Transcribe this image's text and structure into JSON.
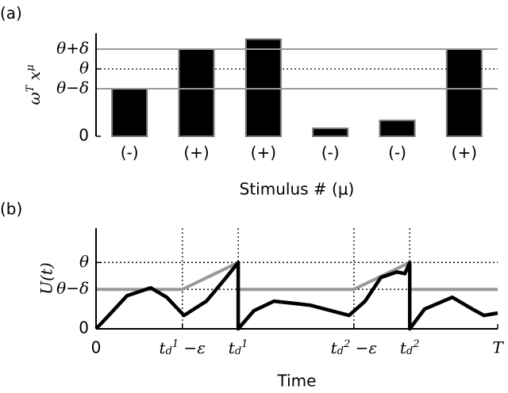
{
  "chart_data": [
    {
      "type": "bar",
      "panel_label": "(a)",
      "xlabel": "Stimulus # (μ)",
      "ylabel": "ω^T x^μ",
      "categories": [
        "(-)",
        "(+)",
        "(+)",
        "(-)",
        "(-)",
        "(+)"
      ],
      "values": [
        2.4,
        4.4,
        4.9,
        0.4,
        0.8,
        4.4
      ],
      "color": "#000000",
      "ylim": [
        0,
        5.2
      ],
      "yticks": [
        0,
        {
          "value": 2.4,
          "label": "θ−δ"
        },
        {
          "value": 3.4,
          "label": "θ"
        },
        {
          "value": 4.4,
          "label": "θ+δ"
        }
      ],
      "grid": true
    },
    {
      "type": "line",
      "panel_label": "(b)",
      "xlabel": "Time",
      "ylabel": "U(t)",
      "xlim": [
        0,
        10
      ],
      "ylim": [
        0,
        5.1
      ],
      "xticks": [
        0,
        {
          "value": 2.15,
          "label": "t_d^1 −ε"
        },
        {
          "value": 3.54,
          "label": "t_d^1"
        },
        {
          "value": 6.42,
          "label": "t_d^2 −ε"
        },
        {
          "value": 7.81,
          "label": "t_d^2"
        },
        {
          "value": 10,
          "label": "T"
        }
      ],
      "yticks": [
        0,
        {
          "value": 2,
          "label": "θ−δ"
        },
        {
          "value": 3.36,
          "label": "θ"
        }
      ],
      "grid": true,
      "series": [
        {
          "color": "#999999",
          "x": [
            0,
            2.15,
            3.54,
            3.54,
            3.54,
            6.42,
            7.81,
            7.81,
            7.81,
            10
          ],
          "values": [
            2,
            2,
            3.36,
            null,
            2,
            2,
            3.36,
            null,
            2,
            2
          ]
        },
        {
          "color": "#000000",
          "x": [
            0,
            0.28,
            0.77,
            1.36,
            1.76,
            2.19,
            2.75,
            3.24,
            3.54,
            3.54,
            3.93,
            4.43,
            5.32,
            6.3,
            6.7,
            7.09,
            7.49,
            7.69,
            7.81,
            7.81,
            8.18,
            8.87,
            9.37,
            9.66,
            10
          ],
          "values": [
            0,
            0.6,
            1.68,
            2.08,
            1.6,
            0.68,
            1.4,
            2.6,
            3.36,
            0,
            0.92,
            1.4,
            1.2,
            0.68,
            1.4,
            2.6,
            2.88,
            2.8,
            3.36,
            0,
            1.0,
            1.6,
            1.0,
            0.68,
            0.8
          ]
        }
      ]
    }
  ]
}
